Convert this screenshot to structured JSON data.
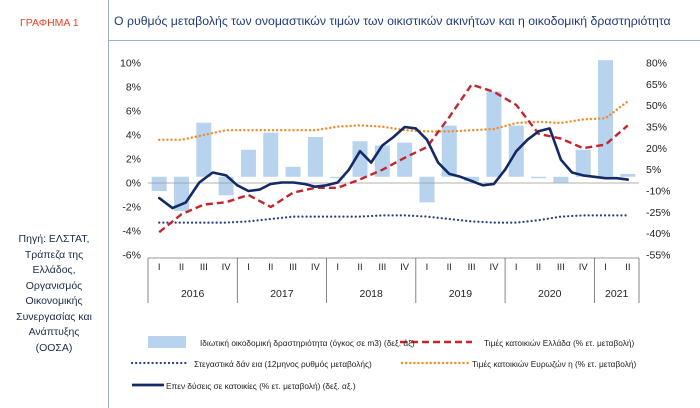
{
  "graph_label": "ΓΡΑΦΗΜΑ 1",
  "title": "Ο ρυθμός μεταβολής των ονομαστικών τιμών των οικιστικών ακινήτων και η οικοδομική δραστηριότητα",
  "source_lines": [
    "Πηγή: ΕΛΣΤΑΤ,",
    "Τράπεζα της",
    "Ελλάδος,",
    "Οργανισμός",
    "Οικονομικής",
    "Συνεργασίας και",
    "Ανάπτυξης",
    "(ΟΟΣΑ)"
  ],
  "colors": {
    "bars": "#b8d3ee",
    "greece": "#c2262e",
    "eurozone": "#f08c2a",
    "loans": "#2b3f80",
    "investment": "#142a66",
    "text": "#1f3c74"
  },
  "chart_data": {
    "type": "bar+line",
    "title": "Ο ρυθμός μεταβολής των ονομαστικών τιμών των οικιστικών ακινήτων και η οικοδομική δραστηριότητα",
    "quarters": [
      "I",
      "II",
      "III",
      "IV",
      "I",
      "II",
      "III",
      "IV",
      "I",
      "II",
      "III",
      "IV",
      "I",
      "II",
      "III",
      "IV",
      "I",
      "II",
      "III",
      "IV",
      "I",
      "II"
    ],
    "years": [
      {
        "label": "2016",
        "quarters": 4
      },
      {
        "label": "2017",
        "quarters": 4
      },
      {
        "label": "2018",
        "quarters": 4
      },
      {
        "label": "2019",
        "quarters": 4
      },
      {
        "label": "2020",
        "quarters": 4
      },
      {
        "label": "2021",
        "quarters": 2
      }
    ],
    "left_axis": {
      "min": -6,
      "max": 10,
      "step": 2,
      "ticks": [
        "-6%",
        "-4%",
        "-2%",
        "0%",
        "2%",
        "4%",
        "6%",
        "8%",
        "10%"
      ]
    },
    "right_axis": {
      "min": -55,
      "max": 80,
      "ticks": [
        "-55%",
        "-40%",
        "-25%",
        "-10%",
        "5%",
        "20%",
        "35%",
        "50%",
        "65%",
        "80%"
      ]
    },
    "grid": false,
    "legend_placement": "bottom",
    "series": [
      {
        "name": "Ιδιωτική οικοδομική δραστηριότητα (όγκος σε m3) (δεξ. άξ)",
        "kind": "bar",
        "axis": "right",
        "values": [
          -10,
          -24,
          38,
          -13,
          19,
          31,
          7,
          28,
          -1,
          25,
          22,
          24,
          -18,
          36,
          -3,
          60,
          36,
          -1,
          -4,
          19,
          82,
          2
        ]
      },
      {
        "name": "Τιμές κατοικιών Ελλάδα (% ετ. μεταβολή)",
        "kind": "dashed",
        "axis": "left",
        "x": [
          0,
          1,
          2,
          3,
          4,
          5,
          6,
          7,
          8,
          9,
          10,
          11,
          12,
          13,
          14,
          15,
          16,
          17,
          18,
          19,
          20,
          21
        ],
        "values": [
          -4.1,
          -2.6,
          -1.8,
          -1.6,
          -1.0,
          -2.0,
          -0.8,
          -0.4,
          -0.4,
          0.3,
          1.1,
          2.1,
          3.0,
          5.5,
          8.2,
          7.6,
          6.5,
          4.1,
          3.7,
          2.9,
          3.2,
          4.8
        ]
      },
      {
        "name": "Στεγαστικά δάνεια (12μηνος ρυθμός μεταβολής)",
        "kind": "dotted",
        "axis": "left",
        "x": [
          0,
          1,
          2,
          3,
          4,
          5,
          6,
          7,
          8,
          9,
          10,
          11,
          12,
          13,
          14,
          15,
          16,
          17,
          18,
          19,
          20,
          21
        ],
        "values": [
          -3.3,
          -3.3,
          -3.3,
          -3.3,
          -3.2,
          -3.0,
          -2.8,
          -2.8,
          -2.8,
          -2.8,
          -2.7,
          -2.7,
          -2.8,
          -3.0,
          -3.2,
          -3.3,
          -3.3,
          -3.1,
          -2.8,
          -2.7,
          -2.7,
          -2.7
        ]
      },
      {
        "name": "Τιμές κατοικιών Ευρωζώνη (% ετ. μεταβολή)",
        "kind": "dotted",
        "axis": "left",
        "x": [
          0,
          1,
          2,
          3,
          4,
          5,
          6,
          7,
          8,
          9,
          10,
          11,
          12,
          13,
          14,
          15,
          16,
          17,
          18,
          19,
          20,
          21
        ],
        "values": [
          3.6,
          3.6,
          4.0,
          4.4,
          4.4,
          4.4,
          4.4,
          4.4,
          4.7,
          4.8,
          4.7,
          4.4,
          4.3,
          4.3,
          4.4,
          4.5,
          5.0,
          5.1,
          5.0,
          5.3,
          5.4,
          6.8
        ]
      },
      {
        "name": "Επενδύσεις σε κατοικίες (% ετ. μεταβολή) (δεξ. αξ.)",
        "kind": "line",
        "axis": "right",
        "x": [
          0,
          0.6,
          1.2,
          1.8,
          2.4,
          3,
          3.5,
          4,
          4.5,
          5,
          5.5,
          6,
          6.5,
          7,
          7.5,
          8,
          8.5,
          9,
          9.5,
          10,
          10.5,
          11,
          11.5,
          12,
          12.5,
          13,
          13.5,
          14,
          14.5,
          15,
          15.5,
          16,
          16.5,
          17,
          17.5,
          18,
          18.5,
          19,
          19.5,
          20,
          20.5,
          21
        ],
        "values": [
          -15,
          -22,
          -18,
          -4,
          3,
          1,
          -6,
          -10,
          -9,
          -5,
          -4,
          -4,
          -5,
          -7,
          -6,
          -4,
          5,
          18,
          10,
          22,
          28,
          35,
          34,
          26,
          10,
          2,
          0,
          -3,
          -6,
          -5,
          5,
          18,
          26,
          32,
          34,
          12,
          3,
          1,
          0,
          -1,
          -1,
          -2
        ]
      }
    ]
  },
  "legend": [
    {
      "label": "Ιδιωτική οικοδομική δραστηριότητα (όγκος σε m3) (δεξ. άξ)"
    },
    {
      "label": "Τιμές κατοικιών Ελλάδα (% ετ. μεταβολή)"
    },
    {
      "label": "Στεγαστικά δάν εια (12μηνος ρυθμός μεταβολής)"
    },
    {
      "label": "Τιμές κατοικιών Ευρωζών η (% ετ. μεταβολή)"
    },
    {
      "label": "Επεν δύσεις σε κατοικίες (% ετ. μεταβολή) (δεξ. αξ.)"
    }
  ]
}
